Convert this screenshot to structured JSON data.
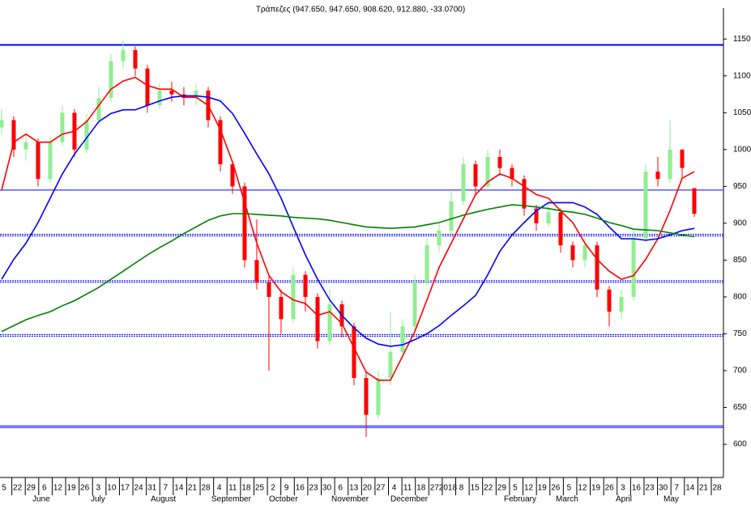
{
  "chart_data": {
    "type": "candlestick",
    "title": "Τράπεζες (947.650, 947.650, 908.620, 912.880, -33.0700)",
    "up_color": "#90ee90",
    "down_color": "#ff0000",
    "xlim": [
      -0.13,
      59.4
    ],
    "ylim": [
      555,
      1192
    ],
    "yticks": [
      600,
      650,
      700,
      750,
      800,
      850,
      900,
      950,
      1000,
      1050,
      1100,
      1150
    ],
    "hlines": [
      1142,
      945,
      885,
      822,
      749,
      625
    ],
    "hline_color": "#0000ff",
    "date_ticks": [
      "5",
      "22",
      "29",
      "6",
      "12",
      "19",
      "26",
      "3",
      "10",
      "17",
      "24",
      "31",
      "7",
      "14",
      "21",
      "28",
      "4",
      "11",
      "18",
      "25",
      "2",
      "9",
      "16",
      "23",
      "30",
      "6",
      "13",
      "20",
      "27",
      "4",
      "11",
      "18",
      "27",
      "2018",
      "8",
      "15",
      "22",
      "29",
      "5",
      "12",
      "19",
      "26",
      "5",
      "12",
      "19",
      "26",
      "3",
      "16",
      "23",
      "30",
      "7",
      "14",
      "21",
      "28"
    ],
    "months": [
      "June",
      "July",
      "August",
      "September",
      "October",
      "November",
      "December",
      "February",
      "March",
      "April",
      "May"
    ],
    "open": [
      1030,
      1040,
      1000,
      1010,
      960,
      1010,
      1050,
      1000,
      1040,
      1070,
      1120,
      1135,
      1110,
      1060,
      1080,
      1075,
      1070,
      1080,
      1040,
      980,
      950,
      850,
      820,
      800,
      770,
      830,
      800,
      740,
      790,
      760,
      690,
      640,
      690,
      725,
      760,
      820,
      870,
      890,
      930,
      980,
      950,
      990,
      975,
      960,
      920,
      900,
      915,
      870,
      850,
      870,
      810,
      780,
      800,
      880,
      970,
      960,
      1000,
      947.65
    ],
    "high": [
      1055,
      1045,
      1020,
      1015,
      1018,
      1060,
      1055,
      1048,
      1085,
      1130,
      1148,
      1140,
      1115,
      1090,
      1092,
      1085,
      1090,
      1085,
      1045,
      985,
      955,
      905,
      830,
      810,
      840,
      835,
      805,
      810,
      795,
      765,
      700,
      700,
      780,
      770,
      830,
      880,
      900,
      945,
      990,
      985,
      1000,
      1000,
      980,
      965,
      925,
      930,
      920,
      875,
      880,
      875,
      815,
      810,
      890,
      980,
      990,
      1040,
      1000,
      947.65
    ],
    "low": [
      1020,
      990,
      985,
      950,
      955,
      1005,
      990,
      995,
      1035,
      1065,
      1110,
      1100,
      1050,
      1055,
      1065,
      1060,
      1060,
      1030,
      970,
      940,
      840,
      810,
      700,
      750,
      765,
      780,
      730,
      735,
      745,
      680,
      610,
      635,
      680,
      715,
      755,
      815,
      860,
      885,
      925,
      940,
      945,
      965,
      950,
      910,
      890,
      895,
      860,
      840,
      840,
      800,
      760,
      770,
      795,
      875,
      950,
      955,
      960,
      908.62
    ],
    "close": [
      1040,
      1000,
      1010,
      960,
      1010,
      1050,
      1000,
      1040,
      1070,
      1120,
      1135,
      1110,
      1060,
      1080,
      1075,
      1070,
      1080,
      1040,
      980,
      950,
      850,
      820,
      800,
      770,
      830,
      800,
      740,
      790,
      760,
      690,
      640,
      690,
      725,
      760,
      820,
      870,
      890,
      930,
      980,
      950,
      990,
      975,
      960,
      920,
      900,
      915,
      870,
      850,
      870,
      810,
      780,
      800,
      880,
      970,
      960,
      1000,
      975,
      912.88
    ],
    "series": [
      {
        "color": "#ff0000",
        "values": [
          945,
          1010,
          1021,
          1010,
          1010,
          1021,
          1025,
          1038,
          1060,
          1082,
          1093,
          1098,
          1087,
          1082,
          1082,
          1071,
          1071,
          1060,
          1027,
          983,
          928,
          873,
          829,
          807,
          796,
          791,
          775,
          780,
          764,
          731,
          698,
          687,
          687,
          720,
          753,
          796,
          840,
          873,
          906,
          939,
          956,
          967,
          961,
          950,
          939,
          934,
          917,
          901,
          873,
          851,
          835,
          824,
          829,
          851,
          879,
          917,
          961,
          970
        ]
      },
      {
        "color": "#0000ff",
        "values": [
          824,
          851,
          873,
          901,
          934,
          967,
          994,
          1016,
          1038,
          1049,
          1054,
          1054,
          1060,
          1066,
          1071,
          1073,
          1073,
          1071,
          1066,
          1049,
          1022,
          994,
          967,
          934,
          895,
          857,
          824,
          796,
          775,
          758,
          744,
          736,
          733,
          735,
          742,
          750,
          761,
          775,
          788,
          802,
          830,
          862,
          884,
          901,
          917,
          928,
          928,
          928,
          922,
          912,
          895,
          879,
          879,
          877,
          879,
          884,
          890,
          893
        ]
      },
      {
        "color": "#008000",
        "values": [
          753,
          761,
          769,
          775,
          780,
          788,
          795,
          804,
          813,
          824,
          835,
          846,
          857,
          867,
          876,
          886,
          895,
          904,
          910,
          913,
          913,
          912,
          911,
          910,
          908,
          907,
          906,
          904,
          901,
          898,
          895,
          894,
          893,
          894,
          895,
          898,
          901,
          906,
          911,
          915,
          919,
          922,
          925,
          924,
          922,
          920,
          917,
          915,
          912,
          907,
          901,
          897,
          892,
          891,
          890,
          887,
          884,
          882
        ]
      }
    ]
  }
}
